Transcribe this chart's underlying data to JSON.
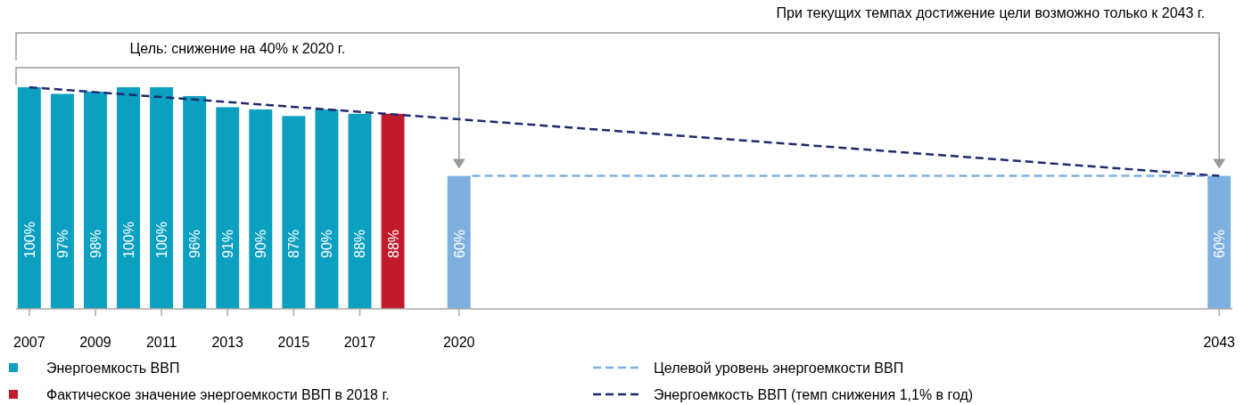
{
  "chart_data": {
    "type": "bar",
    "xlim": [
      2006.6,
      2043.4
    ],
    "xticks": [
      2007,
      2009,
      2011,
      2013,
      2015,
      2017,
      2020,
      2043
    ],
    "tick_labels": "x",
    "legend": "bottom",
    "annotations": [
      "При текущих темпах достижение цели возможно только к 2043 г.",
      "Цель: снижение на 40% к 2020 г."
    ],
    "series": [
      {
        "name": "Энергоемкость ВВП",
        "color": "#0b9fc0",
        "x": [
          2007,
          2008,
          2009,
          2010,
          2011,
          2012,
          2013,
          2014,
          2015,
          2016,
          2017
        ],
        "values": [
          100,
          97,
          98,
          100,
          100,
          96,
          91,
          90,
          87,
          90,
          88
        ],
        "value_labels": [
          "100%",
          "97%",
          "98%",
          "100%",
          "100%",
          "96%",
          "91%",
          "90%",
          "87%",
          "90%",
          "88%"
        ]
      },
      {
        "name": "Фактическое значение энергоемкости ВВП в 2018 г.",
        "color": "#c11b2b",
        "x": [
          2018
        ],
        "values": [
          88
        ],
        "value_labels": [
          "88%"
        ]
      },
      {
        "color": "#7db0df",
        "x": [
          2020,
          2043
        ],
        "values": [
          60,
          60
        ],
        "value_labels": [
          "60%",
          "60%"
        ]
      },
      {
        "name": "Целевой уровень энергоемкости ВВП",
        "type": "line",
        "color": "#7db0df",
        "line_style": "dashed",
        "x": [
          2020.4,
          2042.6
        ],
        "values": [
          60,
          60
        ]
      },
      {
        "name": "Энергоемкость ВВП (темп снижения 1,1% в год)",
        "type": "line",
        "color": "#1f2a6e",
        "line_style": "dashed",
        "x": [
          2007,
          2043
        ],
        "values": [
          100,
          60
        ]
      }
    ]
  }
}
